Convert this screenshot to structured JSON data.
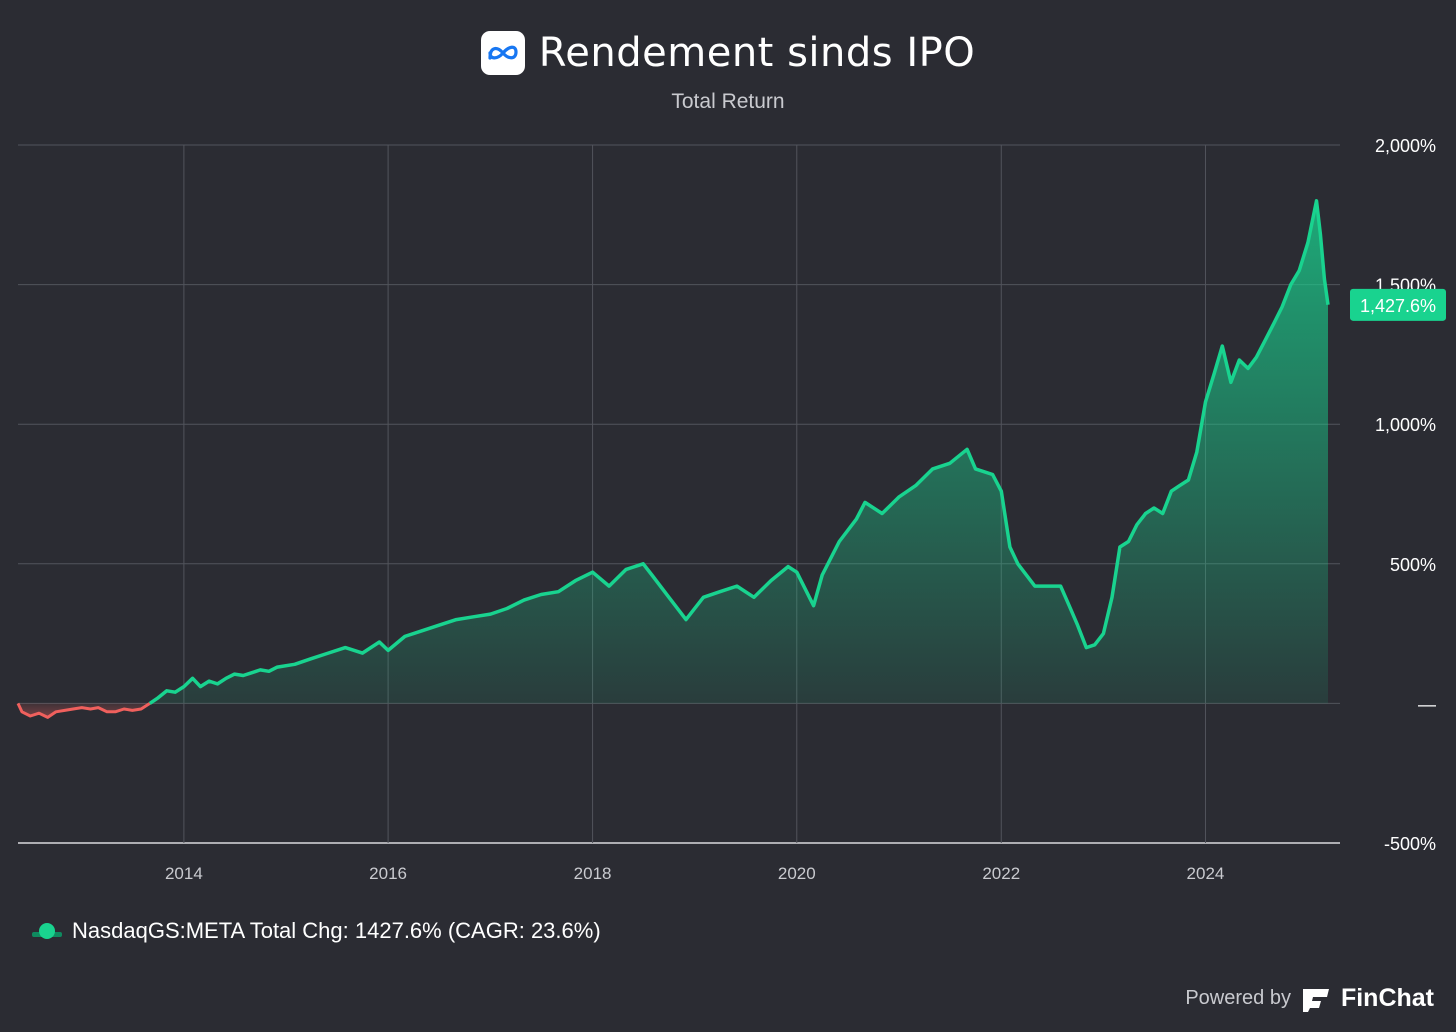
{
  "header": {
    "title": "Rendement sinds IPO",
    "subtitle": "Total Return",
    "logo_icon": "meta-infinity-logo"
  },
  "legend": {
    "label": "NasdaqGS:META Total Chg: 1427.6% (CAGR: 23.6%)"
  },
  "footer": {
    "powered_by": "Powered by",
    "brand": "FinChat",
    "brand_icon": "finchat-logo"
  },
  "colors": {
    "background": "#2b2c33",
    "positive": "#19d38f",
    "negative": "#f0605d",
    "grid": "#52545c",
    "badge": "#19d38f"
  },
  "chart_data": {
    "type": "area",
    "title": "Rendement sinds IPO",
    "subtitle": "Total Return",
    "xlabel": "",
    "ylabel": "",
    "x_ticks": [
      "2014",
      "2016",
      "2018",
      "2020",
      "2022",
      "2024"
    ],
    "y_ticks": [
      "2,000%",
      "1,500%",
      "1,000%",
      "500%",
      "—",
      "-500%"
    ],
    "xlim": [
      "2012-05-18",
      "2025-03-14"
    ],
    "ylim": [
      -500,
      2000
    ],
    "grid": true,
    "legend_position": "bottom-left",
    "last_value_label": "1,427.6%",
    "last_value": 1427.6,
    "series": [
      {
        "name": "NasdaqGS:META",
        "x": [
          "2012-05-18",
          "2012-06",
          "2012-07",
          "2012-08",
          "2012-09",
          "2012-10",
          "2012-11",
          "2012-12",
          "2013-01",
          "2013-02",
          "2013-03",
          "2013-04",
          "2013-05",
          "2013-06",
          "2013-07",
          "2013-08",
          "2013-09",
          "2013-10",
          "2013-11",
          "2013-12",
          "2014-01",
          "2014-02",
          "2014-03",
          "2014-04",
          "2014-05",
          "2014-06",
          "2014-07",
          "2014-08",
          "2014-09",
          "2014-10",
          "2014-11",
          "2014-12",
          "2015-02",
          "2015-04",
          "2015-06",
          "2015-08",
          "2015-10",
          "2015-12",
          "2016-01",
          "2016-03",
          "2016-05",
          "2016-07",
          "2016-09",
          "2016-11",
          "2017-01",
          "2017-03",
          "2017-05",
          "2017-07",
          "2017-09",
          "2017-11",
          "2018-01",
          "2018-03",
          "2018-05",
          "2018-07",
          "2018-08",
          "2018-10",
          "2018-12",
          "2019-02",
          "2019-04",
          "2019-06",
          "2019-08",
          "2019-10",
          "2019-12",
          "2020-01",
          "2020-03",
          "2020-04",
          "2020-06",
          "2020-08",
          "2020-09",
          "2020-11",
          "2021-01",
          "2021-03",
          "2021-05",
          "2021-07",
          "2021-09",
          "2021-10",
          "2021-12",
          "2022-01",
          "2022-02",
          "2022-03",
          "2022-05",
          "2022-06",
          "2022-08",
          "2022-09",
          "2022-10",
          "2022-11",
          "2022-12",
          "2023-01",
          "2023-02",
          "2023-03",
          "2023-04",
          "2023-05",
          "2023-06",
          "2023-07",
          "2023-08",
          "2023-09",
          "2023-10",
          "2023-11",
          "2023-12",
          "2024-01",
          "2024-02",
          "2024-03",
          "2024-04",
          "2024-05",
          "2024-06",
          "2024-07",
          "2024-08",
          "2024-09",
          "2024-10",
          "2024-11",
          "2024-12",
          "2025-01",
          "2025-02",
          "2025-02-15",
          "2025-03",
          "2025-03-14"
        ],
        "values": [
          0,
          -30,
          -45,
          -35,
          -50,
          -30,
          -25,
          -20,
          -15,
          -20,
          -15,
          -30,
          -30,
          -20,
          -25,
          -20,
          0,
          20,
          45,
          40,
          60,
          90,
          60,
          80,
          70,
          90,
          105,
          100,
          110,
          120,
          115,
          130,
          140,
          160,
          180,
          200,
          180,
          220,
          190,
          240,
          260,
          280,
          300,
          310,
          320,
          340,
          370,
          390,
          400,
          440,
          470,
          420,
          480,
          500,
          460,
          380,
          300,
          380,
          400,
          420,
          380,
          440,
          490,
          470,
          350,
          460,
          580,
          660,
          720,
          680,
          740,
          780,
          840,
          860,
          910,
          840,
          820,
          760,
          560,
          500,
          420,
          420,
          420,
          350,
          280,
          200,
          210,
          250,
          380,
          560,
          580,
          640,
          680,
          700,
          680,
          760,
          780,
          800,
          900,
          1080,
          1180,
          1280,
          1150,
          1230,
          1200,
          1240,
          1300,
          1360,
          1420,
          1500,
          1550,
          1650,
          1800,
          1680,
          1520,
          1427.6
        ]
      }
    ]
  }
}
